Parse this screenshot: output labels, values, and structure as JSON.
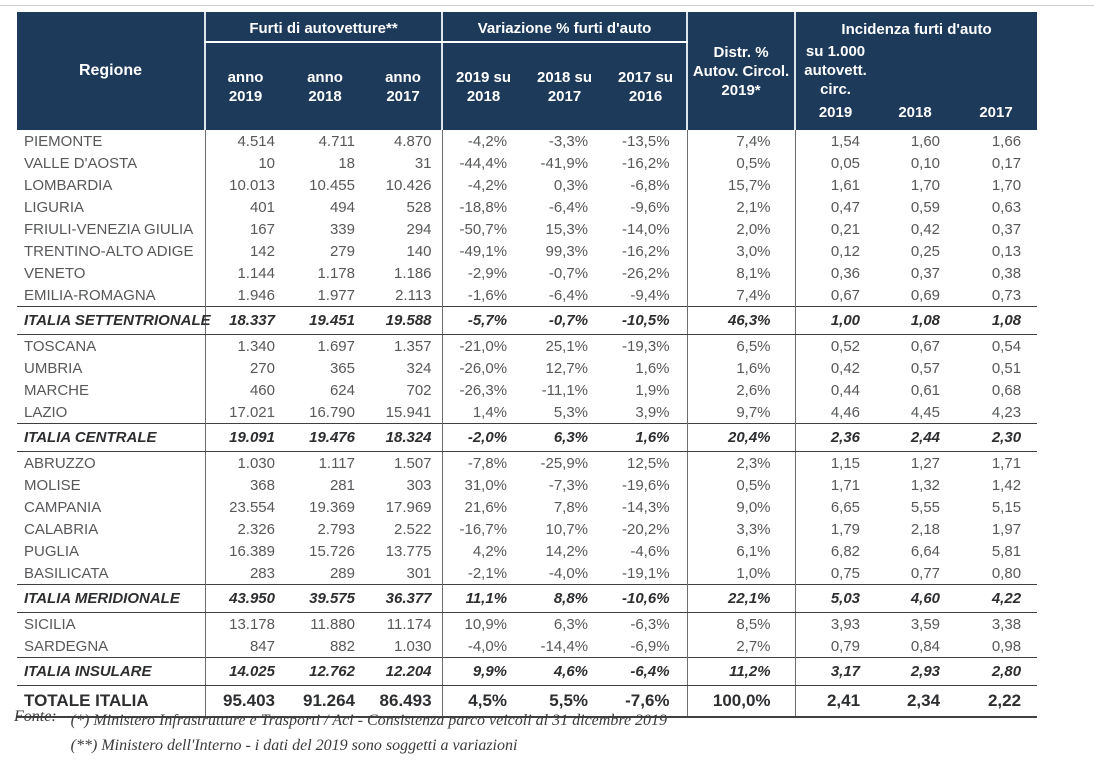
{
  "colors": {
    "header_bg": "#1d3a5a",
    "header_text": "#ffffff",
    "body_text": "#57585a",
    "total_text": "#2d2e30",
    "rule": "#3f4042"
  },
  "table": {
    "header": {
      "regione": "Regione",
      "furti_group": "Furti di autovetture**",
      "furti_cols": [
        [
          "anno",
          "2019"
        ],
        [
          "anno",
          "2018"
        ],
        [
          "anno",
          "2017"
        ]
      ],
      "variazione_group": "Variazione % furti d'auto",
      "variazione_cols": [
        [
          "2019 su",
          "2018"
        ],
        [
          "2018 su",
          "2017"
        ],
        [
          "2017 su",
          "2016"
        ]
      ],
      "distr_lines": [
        "Distr. %",
        "Autov. Circol.",
        "2019*"
      ],
      "incidenza_group_lines": [
        "Incidenza furti d'auto",
        "su 1.000 autovett. circ."
      ],
      "incidenza_cols": [
        "2019",
        "2018",
        "2017"
      ]
    },
    "rows": [
      {
        "type": "region",
        "name": "PIEMONTE",
        "furti": [
          "4.514",
          "4.711",
          "4.870"
        ],
        "variazione": [
          "-4,2%",
          "-3,3%",
          "-13,5%"
        ],
        "distr": "7,4%",
        "incidenza": [
          "1,54",
          "1,60",
          "1,66"
        ]
      },
      {
        "type": "region",
        "name": "VALLE D'AOSTA",
        "furti": [
          "10",
          "18",
          "31"
        ],
        "variazione": [
          "-44,4%",
          "-41,9%",
          "-16,2%"
        ],
        "distr": "0,5%",
        "incidenza": [
          "0,05",
          "0,10",
          "0,17"
        ]
      },
      {
        "type": "region",
        "name": "LOMBARDIA",
        "furti": [
          "10.013",
          "10.455",
          "10.426"
        ],
        "variazione": [
          "-4,2%",
          "0,3%",
          "-6,8%"
        ],
        "distr": "15,7%",
        "incidenza": [
          "1,61",
          "1,70",
          "1,70"
        ]
      },
      {
        "type": "region",
        "name": "LIGURIA",
        "furti": [
          "401",
          "494",
          "528"
        ],
        "variazione": [
          "-18,8%",
          "-6,4%",
          "-9,6%"
        ],
        "distr": "2,1%",
        "incidenza": [
          "0,47",
          "0,59",
          "0,63"
        ]
      },
      {
        "type": "region",
        "name": "FRIULI-VENEZIA GIULIA",
        "furti": [
          "167",
          "339",
          "294"
        ],
        "variazione": [
          "-50,7%",
          "15,3%",
          "-14,0%"
        ],
        "distr": "2,0%",
        "incidenza": [
          "0,21",
          "0,42",
          "0,37"
        ]
      },
      {
        "type": "region",
        "name": "TRENTINO-ALTO ADIGE",
        "furti": [
          "142",
          "279",
          "140"
        ],
        "variazione": [
          "-49,1%",
          "99,3%",
          "-16,2%"
        ],
        "distr": "3,0%",
        "incidenza": [
          "0,12",
          "0,25",
          "0,13"
        ]
      },
      {
        "type": "region",
        "name": "VENETO",
        "furti": [
          "1.144",
          "1.178",
          "1.186"
        ],
        "variazione": [
          "-2,9%",
          "-0,7%",
          "-26,2%"
        ],
        "distr": "8,1%",
        "incidenza": [
          "0,36",
          "0,37",
          "0,38"
        ]
      },
      {
        "type": "region",
        "name": "EMILIA-ROMAGNA",
        "furti": [
          "1.946",
          "1.977",
          "2.113"
        ],
        "variazione": [
          "-1,6%",
          "-6,4%",
          "-9,4%"
        ],
        "distr": "7,4%",
        "incidenza": [
          "0,67",
          "0,69",
          "0,73"
        ]
      },
      {
        "type": "subtotal",
        "name": "ITALIA SETTENTRIONALE",
        "furti": [
          "18.337",
          "19.451",
          "19.588"
        ],
        "variazione": [
          "-5,7%",
          "-0,7%",
          "-10,5%"
        ],
        "distr": "46,3%",
        "incidenza": [
          "1,00",
          "1,08",
          "1,08"
        ]
      },
      {
        "type": "region",
        "name": "TOSCANA",
        "furti": [
          "1.340",
          "1.697",
          "1.357"
        ],
        "variazione": [
          "-21,0%",
          "25,1%",
          "-19,3%"
        ],
        "distr": "6,5%",
        "incidenza": [
          "0,52",
          "0,67",
          "0,54"
        ]
      },
      {
        "type": "region",
        "name": "UMBRIA",
        "furti": [
          "270",
          "365",
          "324"
        ],
        "variazione": [
          "-26,0%",
          "12,7%",
          "1,6%"
        ],
        "distr": "1,6%",
        "incidenza": [
          "0,42",
          "0,57",
          "0,51"
        ]
      },
      {
        "type": "region",
        "name": "MARCHE",
        "furti": [
          "460",
          "624",
          "702"
        ],
        "variazione": [
          "-26,3%",
          "-11,1%",
          "1,9%"
        ],
        "distr": "2,6%",
        "incidenza": [
          "0,44",
          "0,61",
          "0,68"
        ]
      },
      {
        "type": "region",
        "name": "LAZIO",
        "furti": [
          "17.021",
          "16.790",
          "15.941"
        ],
        "variazione": [
          "1,4%",
          "5,3%",
          "3,9%"
        ],
        "distr": "9,7%",
        "incidenza": [
          "4,46",
          "4,45",
          "4,23"
        ]
      },
      {
        "type": "subtotal",
        "name": "ITALIA CENTRALE",
        "furti": [
          "19.091",
          "19.476",
          "18.324"
        ],
        "variazione": [
          "-2,0%",
          "6,3%",
          "1,6%"
        ],
        "distr": "20,4%",
        "incidenza": [
          "2,36",
          "2,44",
          "2,30"
        ]
      },
      {
        "type": "region",
        "name": "ABRUZZO",
        "furti": [
          "1.030",
          "1.117",
          "1.507"
        ],
        "variazione": [
          "-7,8%",
          "-25,9%",
          "12,5%"
        ],
        "distr": "2,3%",
        "incidenza": [
          "1,15",
          "1,27",
          "1,71"
        ]
      },
      {
        "type": "region",
        "name": "MOLISE",
        "furti": [
          "368",
          "281",
          "303"
        ],
        "variazione": [
          "31,0%",
          "-7,3%",
          "-19,6%"
        ],
        "distr": "0,5%",
        "incidenza": [
          "1,71",
          "1,32",
          "1,42"
        ]
      },
      {
        "type": "region",
        "name": "CAMPANIA",
        "furti": [
          "23.554",
          "19.369",
          "17.969"
        ],
        "variazione": [
          "21,6%",
          "7,8%",
          "-14,3%"
        ],
        "distr": "9,0%",
        "incidenza": [
          "6,65",
          "5,55",
          "5,15"
        ]
      },
      {
        "type": "region",
        "name": "CALABRIA",
        "furti": [
          "2.326",
          "2.793",
          "2.522"
        ],
        "variazione": [
          "-16,7%",
          "10,7%",
          "-20,2%"
        ],
        "distr": "3,3%",
        "incidenza": [
          "1,79",
          "2,18",
          "1,97"
        ]
      },
      {
        "type": "region",
        "name": "PUGLIA",
        "furti": [
          "16.389",
          "15.726",
          "13.775"
        ],
        "variazione": [
          "4,2%",
          "14,2%",
          "-4,6%"
        ],
        "distr": "6,1%",
        "incidenza": [
          "6,82",
          "6,64",
          "5,81"
        ]
      },
      {
        "type": "region",
        "name": "BASILICATA",
        "furti": [
          "283",
          "289",
          "301"
        ],
        "variazione": [
          "-2,1%",
          "-4,0%",
          "-19,1%"
        ],
        "distr": "1,0%",
        "incidenza": [
          "0,75",
          "0,77",
          "0,80"
        ]
      },
      {
        "type": "subtotal",
        "name": "ITALIA MERIDIONALE",
        "furti": [
          "43.950",
          "39.575",
          "36.377"
        ],
        "variazione": [
          "11,1%",
          "8,8%",
          "-10,6%"
        ],
        "distr": "22,1%",
        "incidenza": [
          "5,03",
          "4,60",
          "4,22"
        ]
      },
      {
        "type": "region",
        "name": "SICILIA",
        "furti": [
          "13.178",
          "11.880",
          "11.174"
        ],
        "variazione": [
          "10,9%",
          "6,3%",
          "-6,3%"
        ],
        "distr": "8,5%",
        "incidenza": [
          "3,93",
          "3,59",
          "3,38"
        ]
      },
      {
        "type": "region",
        "name": "SARDEGNA",
        "furti": [
          "847",
          "882",
          "1.030"
        ],
        "variazione": [
          "-4,0%",
          "-14,4%",
          "-6,9%"
        ],
        "distr": "2,7%",
        "incidenza": [
          "0,79",
          "0,84",
          "0,98"
        ]
      },
      {
        "type": "subtotal",
        "name": "ITALIA INSULARE",
        "furti": [
          "14.025",
          "12.762",
          "12.204"
        ],
        "variazione": [
          "9,9%",
          "4,6%",
          "-6,4%"
        ],
        "distr": "11,2%",
        "incidenza": [
          "3,17",
          "2,93",
          "2,80"
        ]
      },
      {
        "type": "grandtotal",
        "name": "TOTALE ITALIA",
        "furti": [
          "95.403",
          "91.264",
          "86.493"
        ],
        "variazione": [
          "4,5%",
          "5,5%",
          "-7,6%"
        ],
        "distr": "100,0%",
        "incidenza": [
          "2,41",
          "2,34",
          "2,22"
        ]
      }
    ]
  },
  "footer": {
    "label": "Fonte:",
    "notes": [
      "(*) Ministero Infrastrutture e Trasporti / Aci - Consistenza parco veicoli al 31 dicembre 2019",
      "(**) Ministero dell'Interno - i dati del 2019 sono soggetti a variazioni"
    ]
  }
}
